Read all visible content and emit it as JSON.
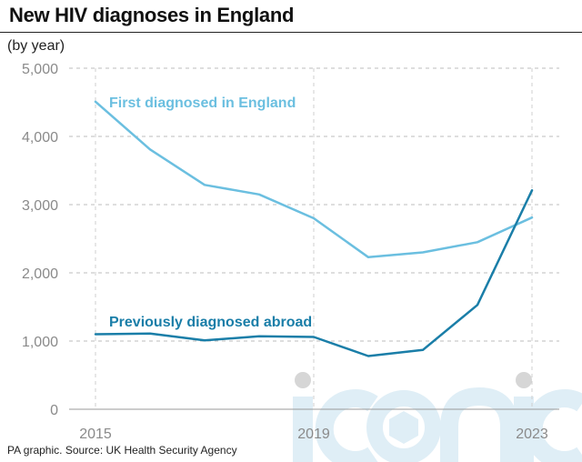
{
  "header": {
    "title": "New HIV diagnoses in England",
    "subtitle": "(by year)"
  },
  "footer": {
    "source": "PA graphic. Source: UK Health Security Agency"
  },
  "watermark": {
    "text": "iconic",
    "color": "#dfeef6"
  },
  "chart_data": {
    "type": "line",
    "x": [
      2015,
      2016,
      2017,
      2018,
      2019,
      2020,
      2021,
      2022,
      2023
    ],
    "x_tick_labels": [
      "2015",
      "2019",
      "2023"
    ],
    "x_ticks": [
      2015,
      2019,
      2023
    ],
    "y_tick_labels": [
      "5,000",
      "4,000",
      "3,000",
      "2,000",
      "1,000",
      "0"
    ],
    "y_ticks": [
      5000,
      4000,
      3000,
      2000,
      1000,
      0
    ],
    "ylim": [
      0,
      5000
    ],
    "grid": true,
    "series": [
      {
        "name": "First diagnosed in England",
        "color": "#6bbfe0",
        "values": [
          4510,
          3810,
          3290,
          3150,
          2800,
          2230,
          2300,
          2450,
          2810
        ]
      },
      {
        "name": "Previously diagnosed abroad",
        "color": "#1a7ea8",
        "values": [
          1100,
          1110,
          1010,
          1070,
          1060,
          780,
          870,
          1530,
          3210
        ]
      }
    ]
  }
}
